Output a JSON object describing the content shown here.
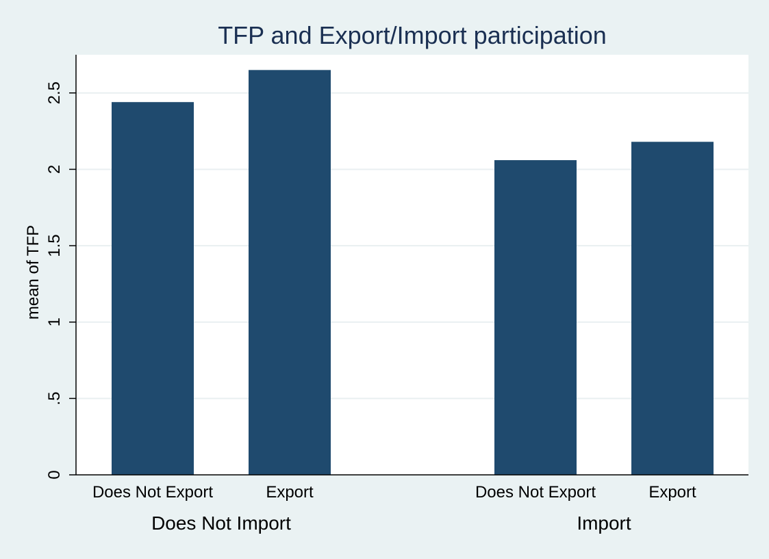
{
  "chart_data": {
    "type": "bar",
    "title": "TFP and Export/Import participation",
    "ylabel": "mean of TFP",
    "xlabel": "",
    "ylim": [
      0,
      2.75
    ],
    "yticks": [
      0,
      0.5,
      1,
      1.5,
      2,
      2.5
    ],
    "ytick_labels": [
      "0",
      ".5",
      "1",
      "1.5",
      "2",
      "2.5"
    ],
    "grid": true,
    "bar_color": "#1f4a6e",
    "groups": [
      {
        "label": "Does Not Import",
        "bars": [
          {
            "category": "Does Not Export",
            "value": 2.44
          },
          {
            "category": "Export",
            "value": 2.65
          }
        ]
      },
      {
        "label": "Import",
        "bars": [
          {
            "category": "Does Not Export",
            "value": 2.06
          },
          {
            "category": "Export",
            "value": 2.18
          }
        ]
      }
    ]
  },
  "colors": {
    "background": "#eaf2f3",
    "plot_background": "#ffffff",
    "gridline": "#e9eff1",
    "title": "#1a2f52",
    "axis": "#000000"
  }
}
